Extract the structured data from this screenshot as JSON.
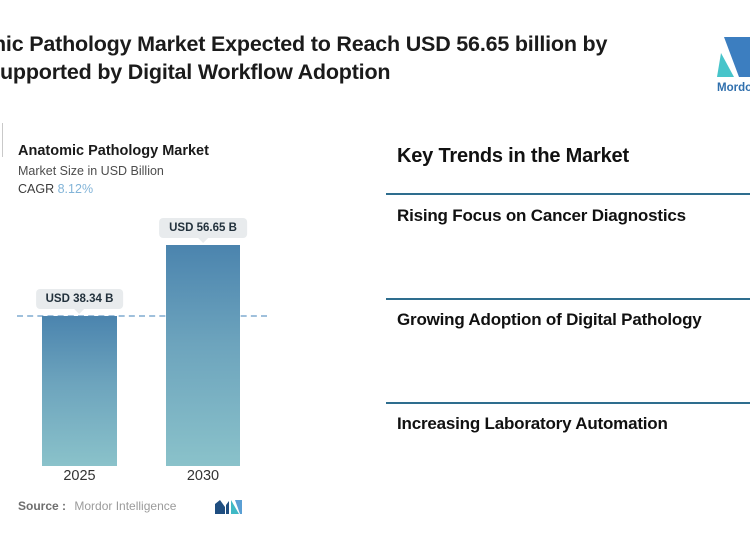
{
  "header": {
    "title_line1": "mic Pathology Market Expected to Reach USD 56.65 billion by",
    "title_line2": "upported by Digital Workflow Adoption",
    "brand_name": "Mordor"
  },
  "chart_data": {
    "type": "bar",
    "title": "Anatomic Pathology Market",
    "subtitle": "Market Size in USD Billion",
    "cagr_label": "CAGR",
    "cagr_value": "8.12%",
    "categories": [
      "2025",
      "2030"
    ],
    "values": [
      38.34,
      56.65
    ],
    "value_labels": [
      "USD 38.34 B",
      "USD 56.65 B"
    ],
    "unit": "USD Billion",
    "ylim": [
      0,
      60
    ],
    "reference_line_at": 38.34,
    "source_label": "Source :",
    "source_value": "Mordor Intelligence"
  },
  "trends": {
    "heading": "Key Trends in the Market",
    "items": [
      {
        "label": "Rising Focus on Cancer Diagnostics"
      },
      {
        "label": "Growing Adoption of Digital Pathology"
      },
      {
        "label": "Increasing Laboratory Automation"
      }
    ]
  },
  "colors": {
    "accent_rule": "#2e6d8e",
    "bar_top": "#4b84ae",
    "bar_bottom": "#8ac2ca",
    "dashed_line": "#9fc0dc",
    "cagr_value": "#82b4d8",
    "logo_blue": "#3c7ec0",
    "logo_teal": "#47c4ca"
  }
}
